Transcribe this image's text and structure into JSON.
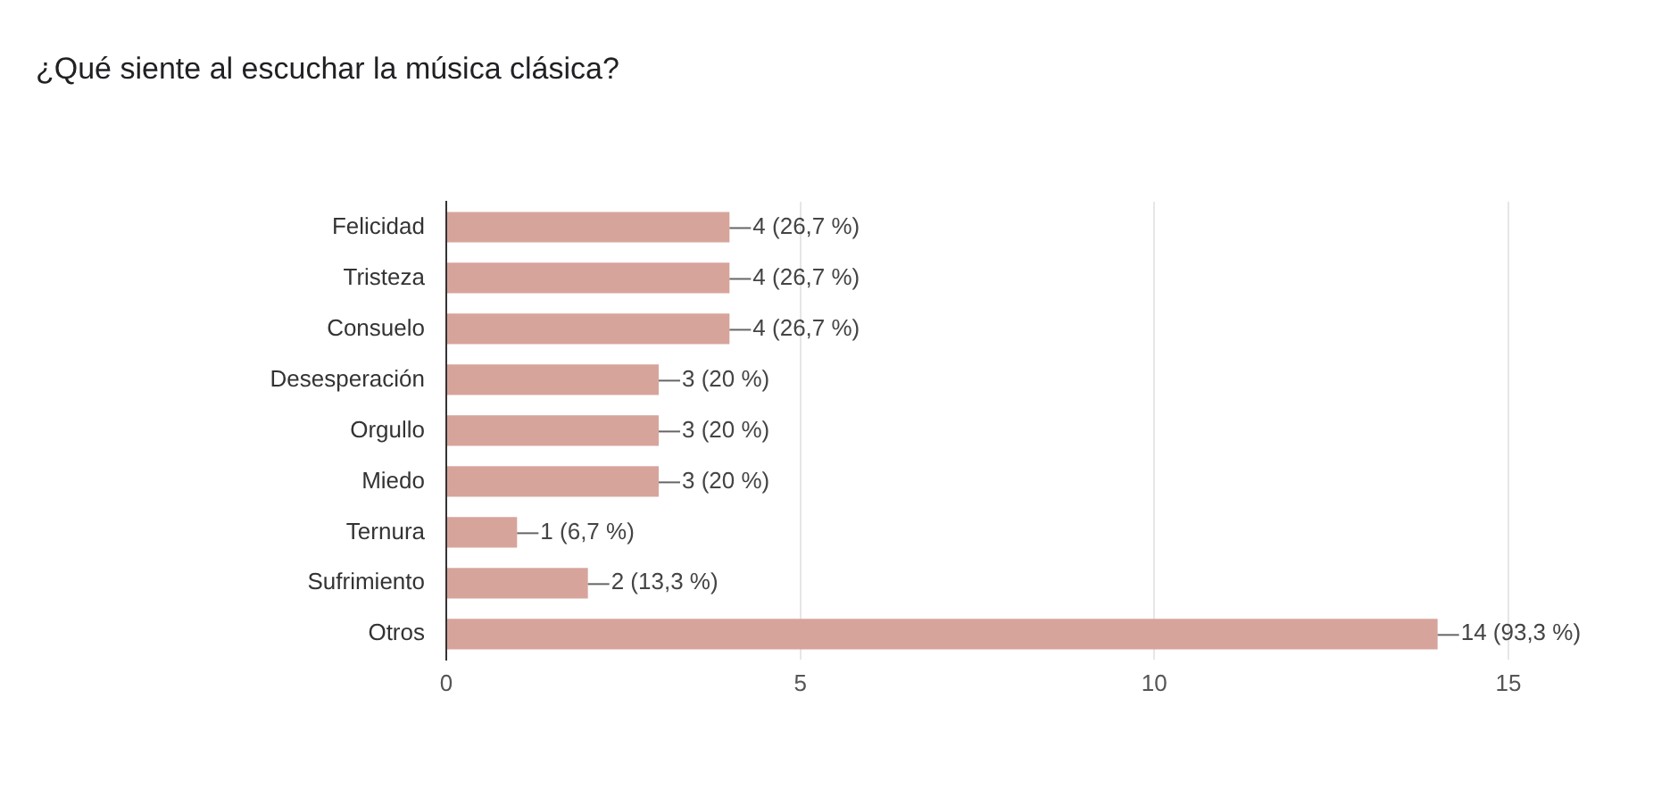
{
  "chart_data": {
    "type": "bar",
    "orientation": "horizontal",
    "title": "¿Qué siente al escuchar la música clásica?",
    "categories": [
      "Felicidad",
      "Tristeza",
      "Consuelo",
      "Desesperación",
      "Orgullo",
      "Miedo",
      "Ternura",
      "Sufrimiento",
      "Otros"
    ],
    "values": [
      4,
      4,
      4,
      3,
      3,
      3,
      1,
      2,
      14
    ],
    "value_labels": [
      "4 (26,7 %)",
      "4 (26,7 %)",
      "4 (26,7 %)",
      "3 (20 %)",
      "3 (20 %)",
      "3 (20 %)",
      "1 (6,7 %)",
      "2 (13,3 %)",
      "14 (93,3 %)"
    ],
    "color": "#d7a49c",
    "xlim": [
      0,
      15
    ],
    "xticks": [
      0,
      5,
      10,
      15
    ],
    "grid": "x",
    "legend": false
  }
}
